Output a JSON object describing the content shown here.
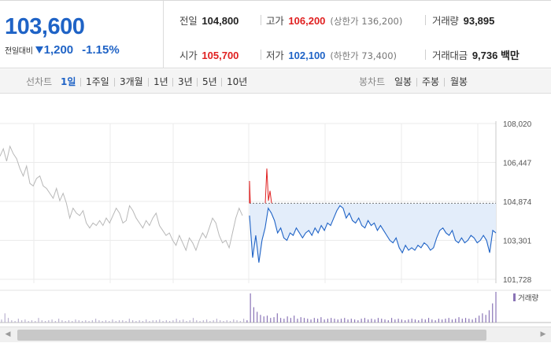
{
  "quote": {
    "price": "103,600",
    "change_label": "전일대비",
    "change_direction": "down",
    "change_amount": "1,200",
    "change_percent": "-1.15%",
    "stats": {
      "prev_close": {
        "label": "전일",
        "value": "104,800"
      },
      "high": {
        "label": "고가",
        "value": "106,200",
        "sub": "(상한가 136,200)"
      },
      "volume": {
        "label": "거래량",
        "value": "93,895"
      },
      "open": {
        "label": "시가",
        "value": "105,700"
      },
      "low": {
        "label": "저가",
        "value": "102,100",
        "sub": "(하한가 73,400)"
      },
      "trade_value": {
        "label": "거래대금",
        "value": "9,736 백만"
      }
    },
    "colors": {
      "up": "#e02020",
      "down": "#1f63c6"
    }
  },
  "toolbar": {
    "line_chart_title": "선차트",
    "periods": [
      "1일",
      "1주일",
      "3개월",
      "1년",
      "3년",
      "5년",
      "10년"
    ],
    "active_period": "1일",
    "candle_chart_title": "봉차트",
    "candle_periods": [
      "일봉",
      "주봉",
      "월봉"
    ]
  },
  "chart_data": {
    "type": "line",
    "y_ticks": [
      "108,020",
      "106,447",
      "104,874",
      "103,301",
      "101,728"
    ],
    "ylim": [
      101728,
      108020
    ],
    "reference_line": 104800,
    "series": [
      {
        "values": [
          106700,
          107000,
          106500,
          107100,
          106800,
          106600,
          106200,
          105900,
          106300,
          105600,
          105500,
          105800,
          105900,
          105500,
          105400,
          105200,
          105000,
          105400,
          104900,
          105200,
          104800,
          104200,
          104600,
          104400,
          104300,
          104500,
          104000,
          103800,
          104000,
          103900,
          104100,
          103900,
          104200,
          104000,
          104300,
          104600,
          104400,
          104000,
          104100,
          104700,
          104500,
          104200,
          104000,
          103800,
          104100,
          103900,
          104200,
          104400,
          103900,
          103700,
          103500,
          103600,
          103300,
          103100,
          103500,
          103200,
          102900,
          103400,
          103200,
          102900,
          103300,
          103600,
          103400,
          103800,
          104200,
          104000,
          103500,
          103200,
          103300,
          103000,
          103600,
          104200,
          104600,
          104300
        ]
      },
      {
        "values": [
          104300,
          102600,
          103500,
          102400,
          103300,
          103800,
          104600,
          104400,
          104100,
          103600,
          103800,
          103400,
          103300,
          103600,
          103500,
          103800,
          103600,
          103400,
          103600,
          103700,
          103500,
          103800,
          103600,
          103900,
          103700,
          104000,
          103900,
          104200,
          104500,
          104700,
          104600,
          104200,
          104400,
          104100,
          104000,
          104200,
          103900,
          103800,
          104100,
          103900,
          104000,
          103700,
          103900,
          103700,
          103500,
          103300,
          103200,
          103400,
          103000,
          102800,
          103100,
          102900,
          103000,
          102900,
          103100,
          103000,
          103200,
          103100,
          102900,
          103000,
          103400,
          103700,
          103800,
          103600,
          103500,
          103700,
          103300,
          103200,
          103400,
          103200,
          103300,
          103500,
          103400,
          103200,
          103300,
          103500,
          103300,
          102800,
          103700,
          103600
        ]
      }
    ],
    "volume": [
      4,
      12,
      6,
      3,
      2,
      5,
      3,
      4,
      2,
      3,
      2,
      6,
      3,
      2,
      3,
      4,
      2,
      5,
      3,
      2,
      3,
      2,
      4,
      3,
      2,
      3,
      2,
      3,
      5,
      3,
      2,
      3,
      2,
      4,
      2,
      3,
      3,
      2,
      5,
      3,
      2,
      3,
      2,
      4,
      2,
      3,
      3,
      4,
      2,
      3,
      2,
      3,
      5,
      3,
      4,
      2,
      3,
      6,
      3,
      2,
      3,
      4,
      2,
      3,
      5,
      3,
      2,
      3,
      2,
      4,
      3,
      2,
      5,
      3,
      38,
      20,
      14,
      10,
      8,
      9,
      6,
      7,
      12,
      6,
      5,
      8,
      6,
      9,
      5,
      7,
      6,
      5,
      4,
      6,
      5,
      7,
      4,
      5,
      6,
      5,
      4,
      5,
      6,
      4,
      5,
      4,
      3,
      5,
      6,
      4,
      5,
      4,
      6,
      5,
      4,
      3,
      6,
      4,
      5,
      4,
      3,
      4,
      5,
      4,
      3,
      5,
      4,
      6,
      4,
      3,
      5,
      4,
      5,
      6,
      4,
      5,
      7,
      5,
      6,
      5,
      4,
      6,
      9,
      12,
      10,
      16,
      25,
      40
    ],
    "volume_legend": "거래량",
    "grid": true
  }
}
